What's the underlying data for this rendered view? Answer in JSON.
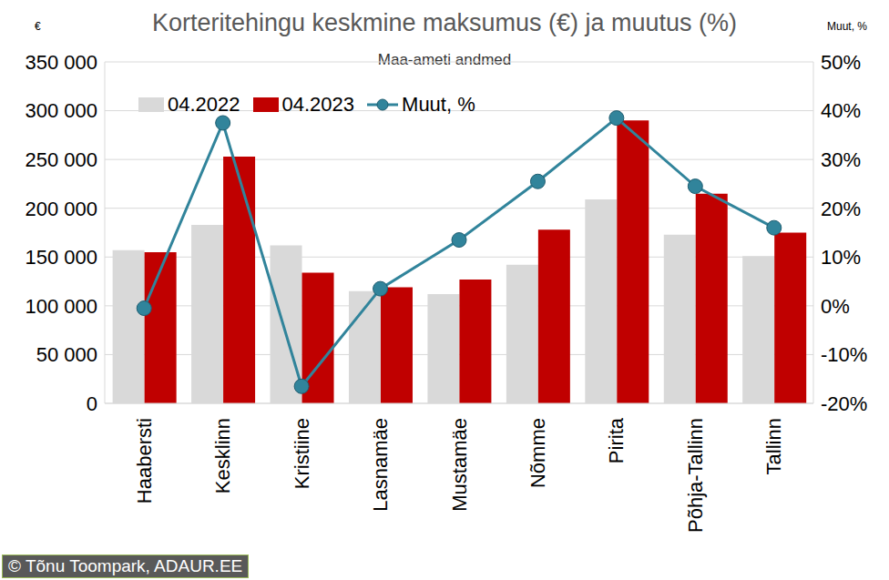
{
  "chart_data": {
    "type": "bar",
    "title": "Korteritehingu keskmine maksumus (€) ja muutus (%)",
    "subtitle": "Maa-ameti andmed",
    "y_label": "€",
    "y2_label": "Muut, %",
    "source": "© Tõnu Toompark, ADAUR.EE",
    "categories": [
      "Haabersti",
      "Kesklinn",
      "Kristiine",
      "Lasnamäe",
      "Mustamäe",
      "Nõmme",
      "Pirita",
      "Põhja-Tallinn",
      "Tallinn"
    ],
    "series": [
      {
        "name": "04.2022",
        "type": "bar",
        "color": "#d9d9d9",
        "values": [
          157000,
          183000,
          162000,
          115000,
          112000,
          142000,
          209000,
          173000,
          151000
        ]
      },
      {
        "name": "04.2023",
        "type": "bar",
        "color": "#c00000",
        "values": [
          155000,
          253000,
          134000,
          119000,
          127000,
          178000,
          290000,
          215000,
          175000
        ]
      },
      {
        "name": "Muut, %",
        "type": "line",
        "axis": "y2",
        "color": "#31849b",
        "marker": "circle",
        "line_style": "solid",
        "values": [
          -0.5,
          37.5,
          -16.5,
          3.5,
          13.5,
          25.5,
          38.5,
          24.5,
          16
        ]
      }
    ],
    "ylim": [
      0,
      350000
    ],
    "yticks": [
      0,
      {
        "value": 50000,
        "label": "50 000"
      },
      {
        "value": 100000,
        "label": "100 000"
      },
      {
        "value": 150000,
        "label": "150 000"
      },
      {
        "value": 200000,
        "label": "200 000"
      },
      {
        "value": 250000,
        "label": "250 000"
      },
      {
        "value": 300000,
        "label": "300 000"
      },
      {
        "value": 350000,
        "label": "350 000"
      }
    ],
    "y2lim": [
      -20,
      50
    ],
    "y2ticks": [
      {
        "value": -20,
        "label": "-20%"
      },
      {
        "value": -10,
        "label": "-10%"
      },
      {
        "value": 0,
        "label": "0%"
      },
      {
        "value": 10,
        "label": "10%"
      },
      {
        "value": 20,
        "label": "20%"
      },
      {
        "value": 30,
        "label": "30%"
      },
      {
        "value": 40,
        "label": "40%"
      },
      {
        "value": 50,
        "label": "50%"
      }
    ],
    "grid": true,
    "legend": "top"
  }
}
